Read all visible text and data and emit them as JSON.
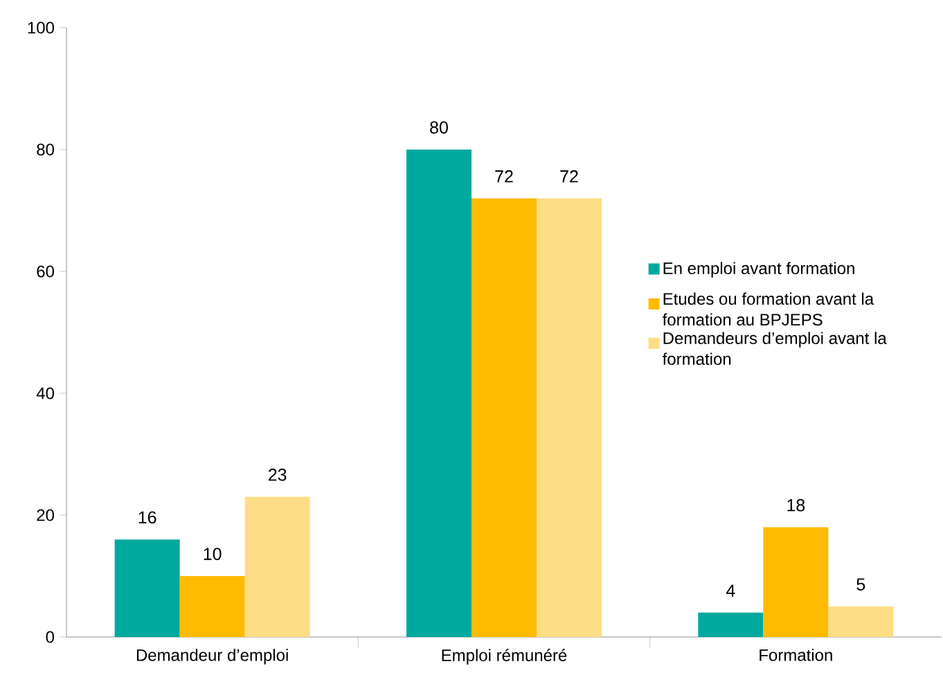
{
  "chart_data": {
    "type": "bar",
    "categories": [
      "Demandeur d’emploi",
      "Emploi rémunéré",
      "Formation"
    ],
    "series": [
      {
        "name": "En emploi avant formation",
        "color": "#00a99d",
        "values": [
          16,
          80,
          4
        ]
      },
      {
        "name": "Etudes ou formation avant la formation au BPJEPS",
        "color": "#ffbb00",
        "values": [
          10,
          72,
          18
        ]
      },
      {
        "name": "Demandeurs d’emploi avant la formation",
        "color": "#fedd87",
        "values": [
          23,
          72,
          5
        ]
      }
    ],
    "ylim": [
      0,
      100
    ],
    "yticks": [
      0,
      20,
      40,
      60,
      80,
      100
    ],
    "data_labels": true,
    "legend": "right",
    "grid": false
  }
}
